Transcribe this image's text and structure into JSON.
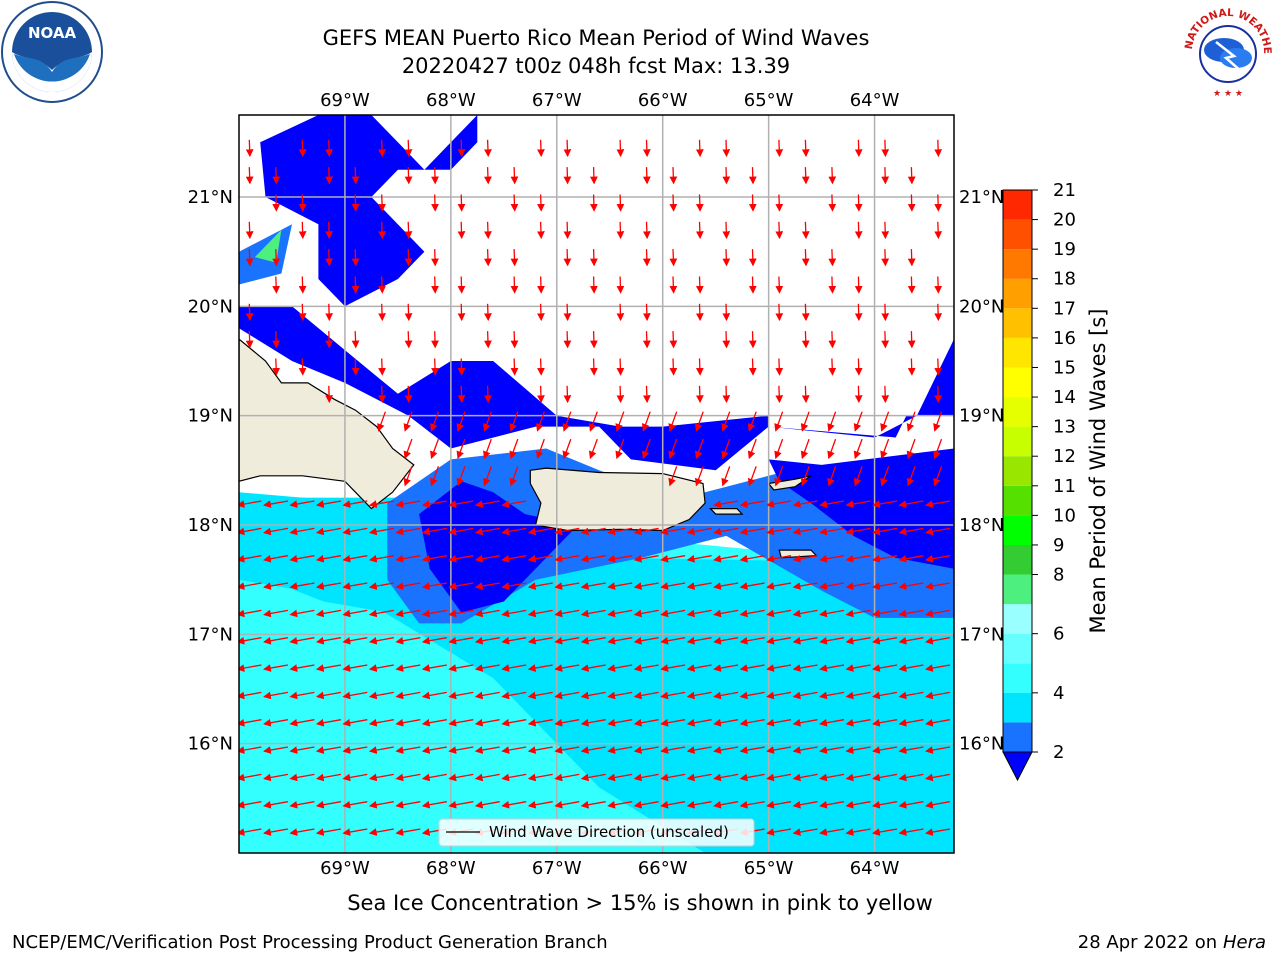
{
  "title": {
    "line1": "GEFS MEAN Puerto Rico Mean Period of Wind Waves",
    "line2": "20220427 t00z 048h fcst   Max: 13.39"
  },
  "axes": {
    "lon_ticks": [
      "69°W",
      "68°W",
      "67°W",
      "66°W",
      "65°W",
      "64°W"
    ],
    "lat_ticks": [
      "21°N",
      "20°N",
      "19°N",
      "18°N",
      "17°N",
      "16°N"
    ],
    "lon_range": [
      -70.0,
      -63.25
    ],
    "lat_range": [
      15.0,
      21.75
    ],
    "grid": true
  },
  "legend": {
    "label": "Wind Wave Direction (unscaled)",
    "placement": "bottom-center"
  },
  "colorbar": {
    "label": "Mean Period of Wind Waves [s]",
    "levels": [
      2,
      3,
      4,
      5,
      6,
      7,
      8,
      9,
      10,
      11,
      12,
      13,
      14,
      15,
      16,
      17,
      18,
      19,
      20,
      21
    ],
    "tick_labels": [
      "2",
      "4",
      "6",
      "8",
      "9",
      "10",
      "11",
      "12",
      "13",
      "14",
      "15",
      "16",
      "17",
      "18",
      "19",
      "20",
      "21"
    ],
    "colors": [
      "#1a73ff",
      "#00e5ff",
      "#33ffff",
      "#66ffff",
      "#99ffff",
      "#4df07f",
      "#33cc33",
      "#00ff00",
      "#55e000",
      "#99e600",
      "#c8ff00",
      "#e6ff00",
      "#ffff00",
      "#ffe600",
      "#ffc000",
      "#ffa000",
      "#ff7800",
      "#ff5000",
      "#ff2800",
      "#ff0000"
    ],
    "under_color": "#0000ff"
  },
  "colors": {
    "land": "#efecdc",
    "arrows": "#ff0000",
    "deep_blue": "#0000ff"
  },
  "captions": {
    "sea_ice": "Sea Ice Concentration > 15% is shown in pink to yellow",
    "branch": "NCEP/EMC/Verification Post Processing Product Generation Branch",
    "date": "28 Apr 2022 on ",
    "machine": "Hera"
  },
  "logos": {
    "noaa": "NOAA",
    "nws": "NATIONAL WEATHER SERVICE"
  }
}
